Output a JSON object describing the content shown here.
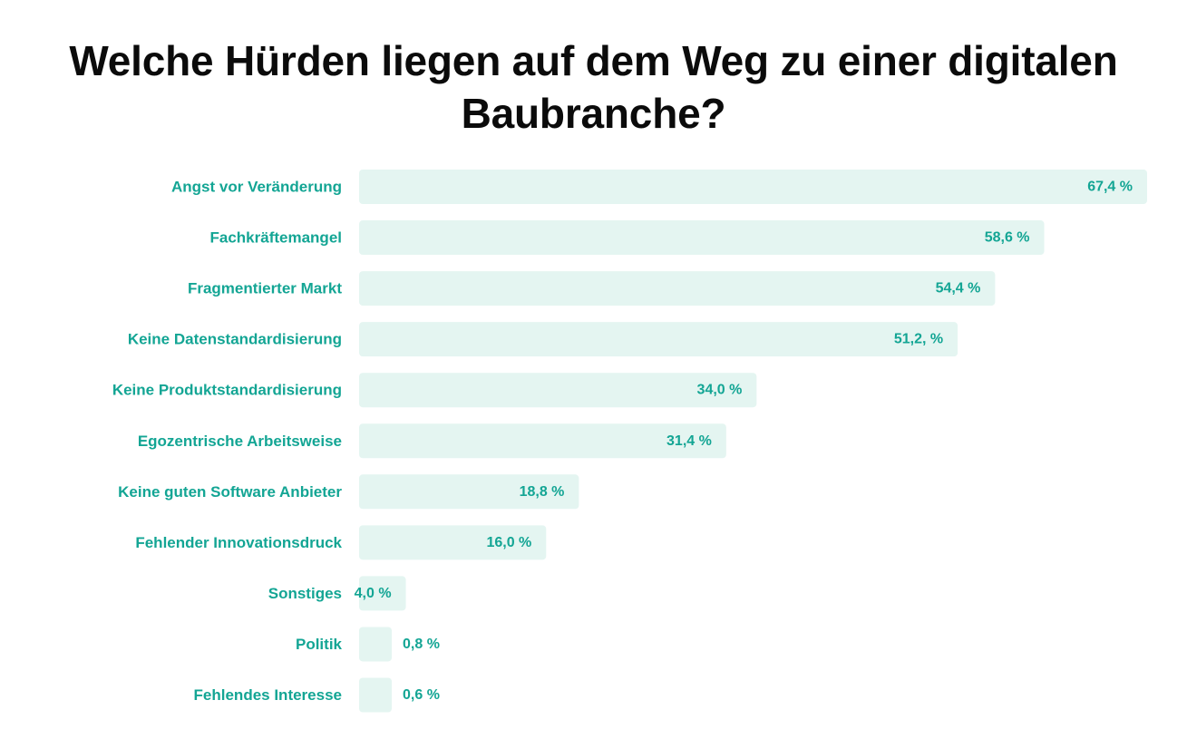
{
  "colors": {
    "accent": "#13a594",
    "bar_fill": "#e4f5f1",
    "title": "#0b0b0b"
  },
  "chart_data": {
    "type": "bar",
    "orientation": "horizontal",
    "title": "Welche Hürden liegen auf dem Weg zu einer digitalen Baubranche?",
    "categories": [
      "Angst vor Veränderung",
      "Fachkräftemangel",
      "Fragmentierter Markt",
      "Keine Datenstandardisierung",
      "Keine Produktstandardisierung",
      "Egozentrische Arbeitsweise",
      "Keine guten Software Anbieter",
      "Fehlender Innovationsdruck",
      "Sonstiges",
      "Politik",
      "Fehlendes Interesse"
    ],
    "values": [
      67.4,
      58.6,
      54.4,
      51.2,
      34.0,
      31.4,
      18.8,
      16.0,
      4.0,
      0.8,
      0.6
    ],
    "value_labels": [
      "67,4 %",
      "58,6 %",
      "54,4 %",
      "51,2, %",
      "34,0 %",
      "31,4 %",
      "18,8 %",
      "16,0 %",
      "4,0 %",
      "0,8 %",
      "0,6 %"
    ],
    "xlabel": "",
    "ylabel": "",
    "xlim": [
      0,
      67.4
    ],
    "grid": false,
    "legend": "none"
  }
}
